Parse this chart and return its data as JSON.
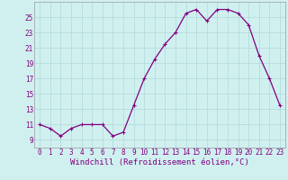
{
  "x": [
    0,
    1,
    2,
    3,
    4,
    5,
    6,
    7,
    8,
    9,
    10,
    11,
    12,
    13,
    14,
    15,
    16,
    17,
    18,
    19,
    20,
    21,
    22,
    23
  ],
  "y": [
    11.0,
    10.5,
    9.5,
    10.5,
    11.0,
    11.0,
    11.0,
    9.5,
    10.0,
    13.5,
    17.0,
    19.5,
    21.5,
    23.0,
    25.5,
    26.0,
    24.5,
    26.0,
    26.0,
    25.5,
    24.0,
    20.0,
    17.0,
    13.5
  ],
  "line_color": "#800080",
  "marker": "+",
  "marker_size": 3,
  "marker_linewidth": 0.8,
  "line_width": 0.9,
  "background_color": "#d0f0f0",
  "grid_color": "#b0d8d8",
  "xlabel": "Windchill (Refroidissement éolien,°C)",
  "xlabel_color": "#800080",
  "ylabel_ticks": [
    9,
    11,
    13,
    15,
    17,
    19,
    21,
    23,
    25
  ],
  "xtick_labels": [
    "0",
    "1",
    "2",
    "3",
    "4",
    "5",
    "6",
    "7",
    "8",
    "9",
    "10",
    "11",
    "12",
    "13",
    "14",
    "15",
    "16",
    "17",
    "18",
    "19",
    "20",
    "21",
    "22",
    "23"
  ],
  "ylim": [
    8.0,
    27.0
  ],
  "xlim": [
    -0.5,
    23.5
  ],
  "tick_color": "#800080",
  "tick_fontsize": 5.5,
  "xlabel_fontsize": 6.5
}
